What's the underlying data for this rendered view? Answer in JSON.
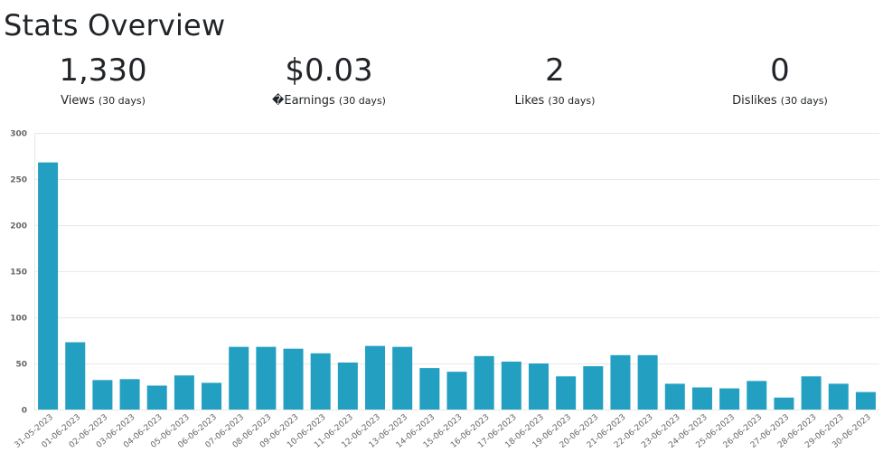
{
  "page_title": "Stats Overview",
  "stats": [
    {
      "value": "1,330",
      "label": "Views",
      "period": "(30 days)"
    },
    {
      "value": "$0.03",
      "label": "�Earnings",
      "period": "(30 days)"
    },
    {
      "value": "2",
      "label": "Likes",
      "period": "(30 days)"
    },
    {
      "value": "0",
      "label": "Dislikes",
      "period": "(30 days)"
    }
  ],
  "colors": {
    "bar": "#23a0c1",
    "grid": "#e9e9e9",
    "axis_text": "#666666"
  },
  "chart_data": {
    "type": "bar",
    "title": "",
    "xlabel": "",
    "ylabel": "",
    "ylim": [
      0,
      300
    ],
    "yticks": [
      0,
      50,
      100,
      150,
      200,
      250,
      300
    ],
    "grid": true,
    "categories": [
      "31-05-2023",
      "01-06-2023",
      "02-06-2023",
      "03-06-2023",
      "04-06-2023",
      "05-06-2023",
      "06-06-2023",
      "07-06-2023",
      "08-06-2023",
      "09-06-2023",
      "10-06-2023",
      "11-06-2023",
      "12-06-2023",
      "13-06-2023",
      "14-06-2023",
      "15-06-2023",
      "16-06-2023",
      "17-06-2023",
      "18-06-2023",
      "19-06-2023",
      "20-06-2023",
      "21-06-2023",
      "22-06-2023",
      "23-06-2023",
      "24-06-2023",
      "25-06-2023",
      "26-06-2023",
      "27-06-2023",
      "28-06-2023",
      "29-06-2023",
      "30-06-2023"
    ],
    "values": [
      268,
      73,
      32,
      33,
      26,
      37,
      29,
      68,
      68,
      66,
      61,
      51,
      69,
      68,
      45,
      41,
      58,
      52,
      50,
      36,
      47,
      59,
      59,
      28,
      24,
      23,
      31,
      13,
      36,
      28,
      19
    ]
  }
}
